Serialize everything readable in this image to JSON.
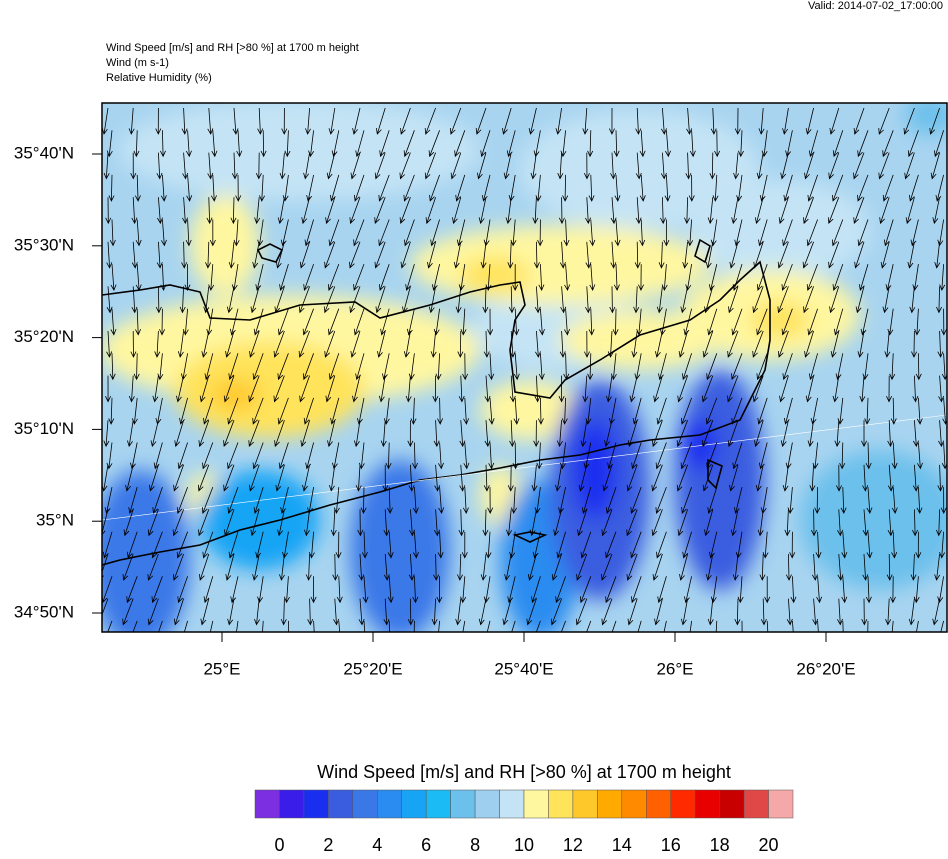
{
  "valid": "Valid: 2014-07-02_17:00:00",
  "header": [
    "Wind Speed [m/s] and RH [>80 %] at 1700 m height",
    "Wind   (m s-1)",
    "Relative Humidity   (%)"
  ],
  "map": {
    "lat_labels": [
      "35°40'N",
      "35°30'N",
      "35°20'N",
      "35°10'N",
      "35°N",
      "34°50'N"
    ],
    "lon_labels": [
      "25°E",
      "25°20'E",
      "25°40'E",
      "26°E",
      "26°20'E"
    ]
  },
  "colorbar": {
    "title": "Wind Speed [m/s] and RH [>80 %] at 1700 m height",
    "lim": [
      -1,
      21
    ],
    "colors": [
      "#7b2fe0",
      "#3a1de8",
      "#1a2ef0",
      "#3a5de0",
      "#3a78e8",
      "#2a8cf0",
      "#18a4f5",
      "#1bbcf5",
      "#6cc0ec",
      "#9ecfee",
      "#c4e4f5",
      "#fff7a0",
      "#ffe35a",
      "#ffc82a",
      "#ffaa00",
      "#ff8a00",
      "#ff6000",
      "#ff2a00",
      "#e80000",
      "#c80000",
      "#e04848",
      "#f5a8a8"
    ],
    "ticks": [
      0,
      2,
      4,
      6,
      8,
      10,
      12,
      14,
      16,
      18,
      20
    ]
  }
}
